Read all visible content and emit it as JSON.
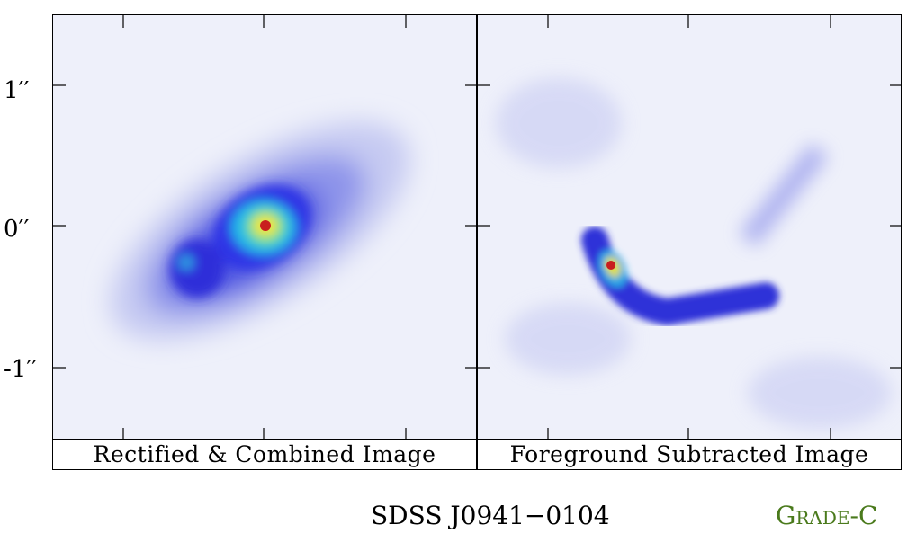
{
  "axis": {
    "ytick_labels": [
      "1′′",
      "0′′",
      "-1′′"
    ]
  },
  "panels": [
    {
      "caption": "Rectified & Combined Image"
    },
    {
      "caption": "Foreground Subtracted Image"
    }
  ],
  "object_name": "SDSS J0941−0104",
  "grade": "Grade-C",
  "colors": {
    "background": "#eef0fa",
    "low": "#3a3ae8",
    "mid": "#24c8e0",
    "high": "#e6e632",
    "peak": "#c81e1e",
    "grade": "#4a7a1c"
  }
}
